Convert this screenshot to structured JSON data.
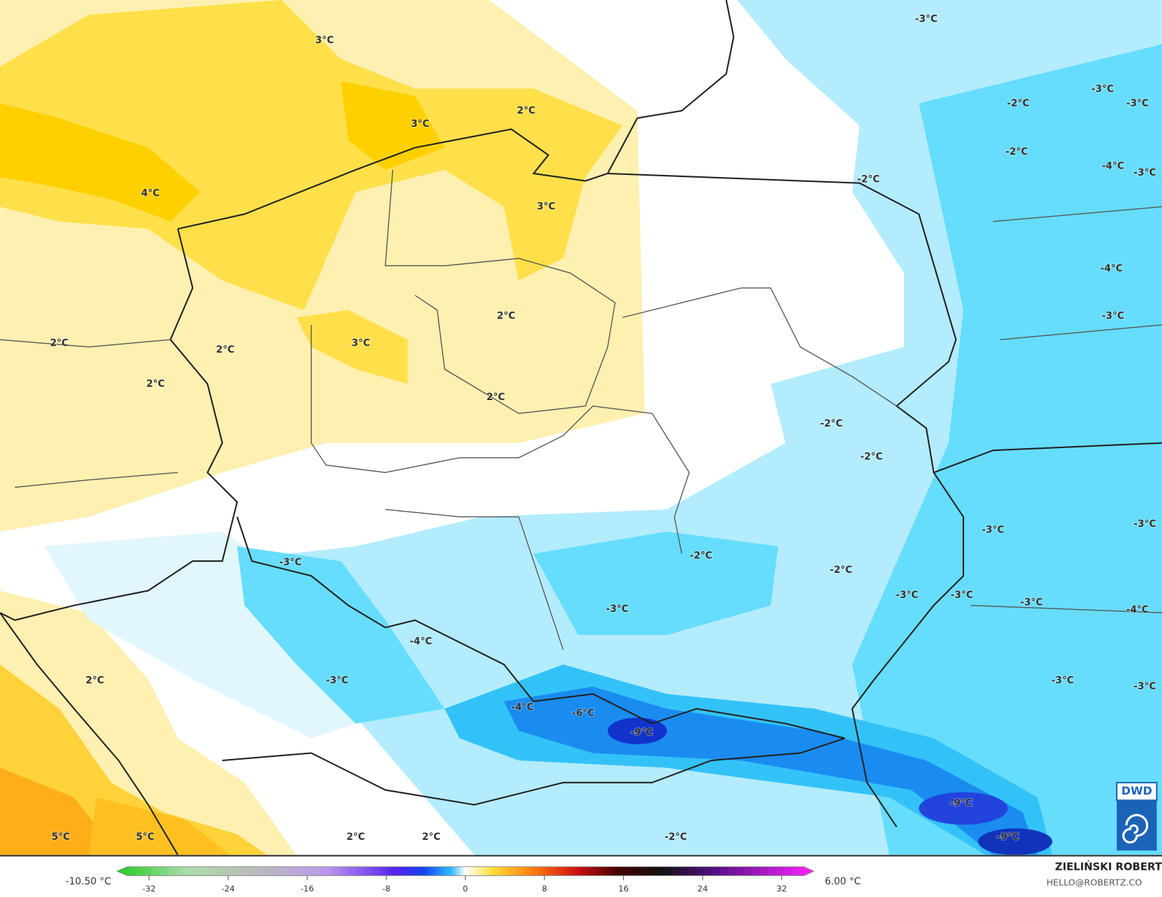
{
  "map": {
    "labels": [
      "3°C",
      "2°C",
      "3°C",
      "4°C",
      "3°C",
      "2°C",
      "2°C",
      "3°C",
      "2°C",
      "2°C",
      "2°C",
      "2°C",
      "5°C",
      "5°C",
      "2°C",
      "2°C",
      "-3°C",
      "-2°C",
      "-3°C",
      "-3°C",
      "-2°C",
      "-4°C",
      "-3°C",
      "-2°C",
      "-4°C",
      "-3°C",
      "-2°C",
      "-2°C",
      "-3°C",
      "-3°C",
      "-2°C",
      "-2°C",
      "-3°C",
      "-3°C",
      "-3°C",
      "-3°C",
      "-4°C",
      "-3°C",
      "-4°C",
      "-3°C",
      "-3°C",
      "-3°C",
      "-4°C",
      "-6°C",
      "-9°C",
      "-9°C",
      "-9°C",
      "-2°C"
    ]
  },
  "colorbar": {
    "ticks": [
      -32,
      -24,
      -16,
      -8,
      0,
      8,
      16,
      24,
      32
    ],
    "min_label": "-10.50 °C",
    "max_label": "6.00 °C"
  },
  "credit": {
    "author": "ZIELIŃSKI ROBERT",
    "email": "HELLO@ROBERTZ.CO"
  },
  "logo": "DWD"
}
